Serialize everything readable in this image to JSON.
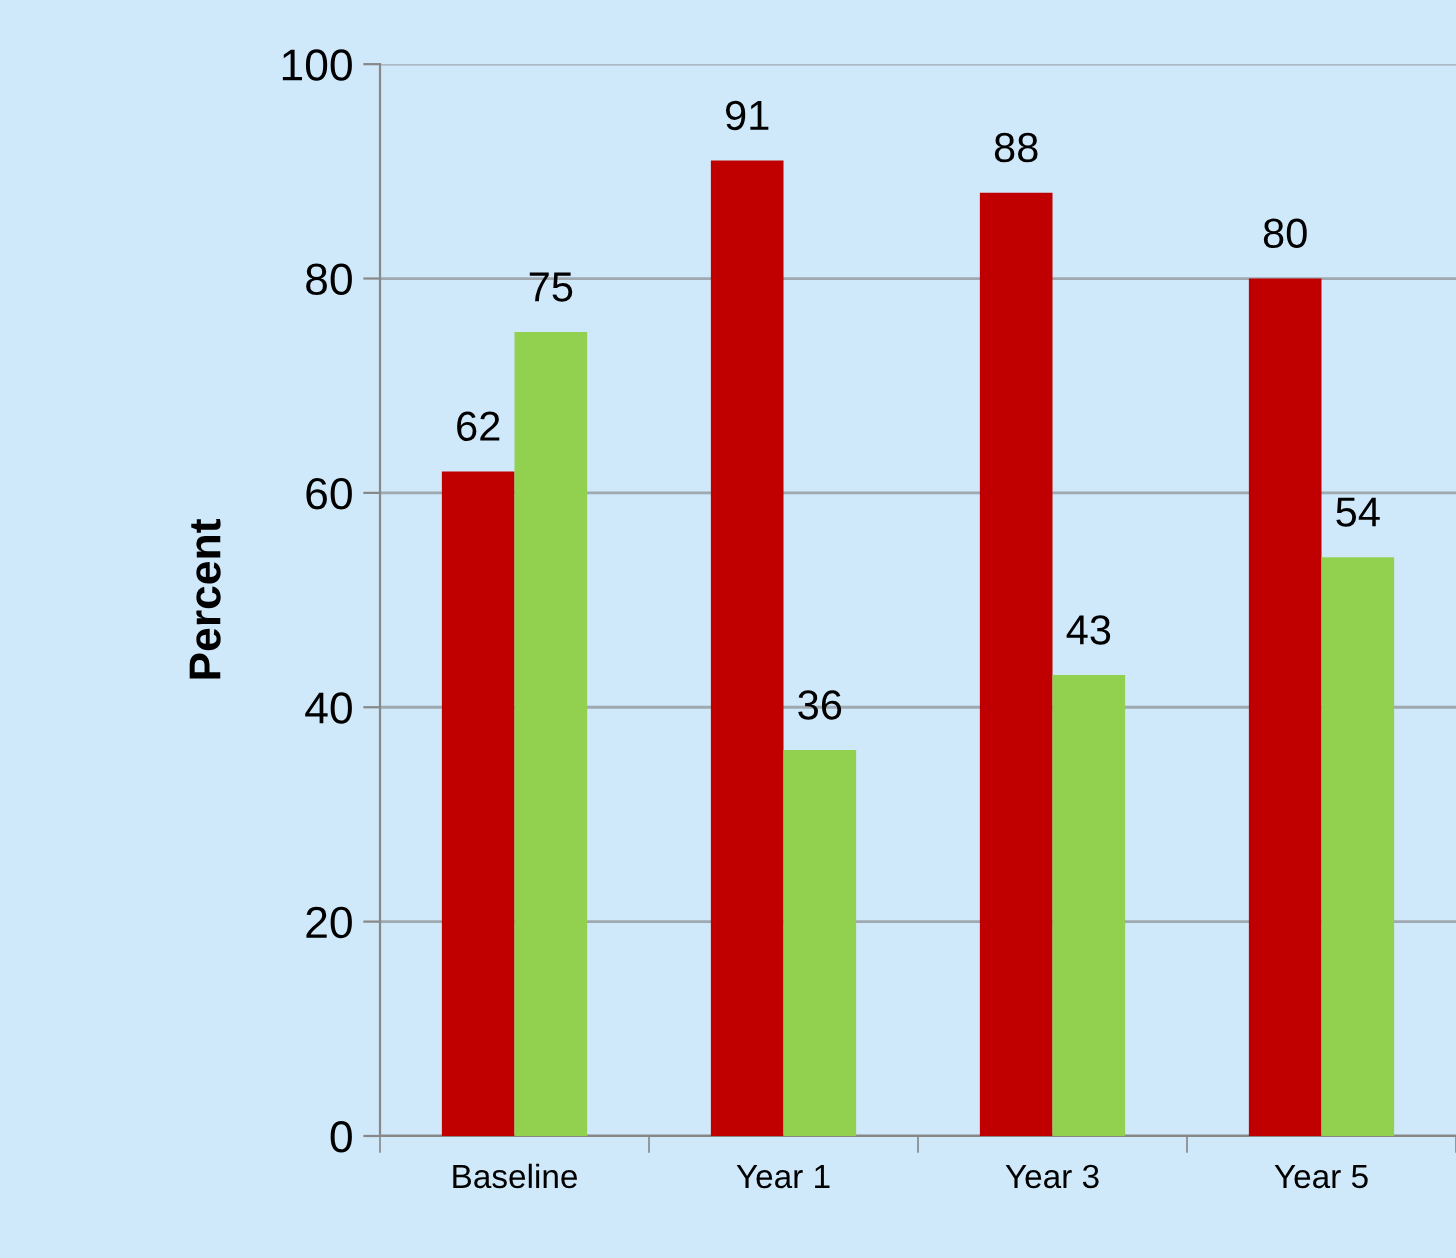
{
  "chart_data": {
    "type": "bar",
    "ylabel": "Percent",
    "categories": [
      "Baseline",
      "Year 1",
      "Year 3",
      "Year 5"
    ],
    "series": [
      {
        "color": "#c00000",
        "values": [
          62,
          91,
          88,
          80
        ]
      },
      {
        "color": "#92d050",
        "values": [
          75,
          36,
          43,
          54
        ]
      }
    ],
    "ylim": [
      0,
      100
    ],
    "yticks": [
      0,
      20,
      40,
      60,
      80,
      100
    ],
    "grid": "y",
    "data_labels": true,
    "legend": false
  }
}
